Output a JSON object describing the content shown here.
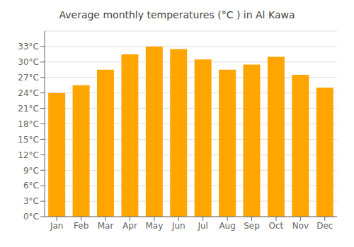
{
  "chart_data": {
    "type": "bar",
    "title": "Average monthly temperatures (°C ) in Al Kawa",
    "categories": [
      "Jan",
      "Feb",
      "Mar",
      "Apr",
      "May",
      "Jun",
      "Jul",
      "Aug",
      "Sep",
      "Oct",
      "Nov",
      "Dec"
    ],
    "values": [
      24.0,
      25.5,
      28.5,
      31.5,
      33.0,
      32.5,
      30.5,
      28.5,
      29.5,
      31.0,
      27.5,
      25.0
    ],
    "color": "#FFA500",
    "ylim": [
      0,
      36
    ],
    "yticks": [
      {
        "value": 0,
        "label": "0°C"
      },
      {
        "value": 3,
        "label": "3°C"
      },
      {
        "value": 6,
        "label": "6°C"
      },
      {
        "value": 9,
        "label": "9°C"
      },
      {
        "value": 12,
        "label": "12°C"
      },
      {
        "value": 15,
        "label": "15°C"
      },
      {
        "value": 18,
        "label": "18°C"
      },
      {
        "value": 21,
        "label": "21°C"
      },
      {
        "value": 24,
        "label": "24°C"
      },
      {
        "value": 27,
        "label": "27°C"
      },
      {
        "value": 30,
        "label": "30°C"
      },
      {
        "value": 33,
        "label": "33°C"
      }
    ],
    "grid": true
  }
}
